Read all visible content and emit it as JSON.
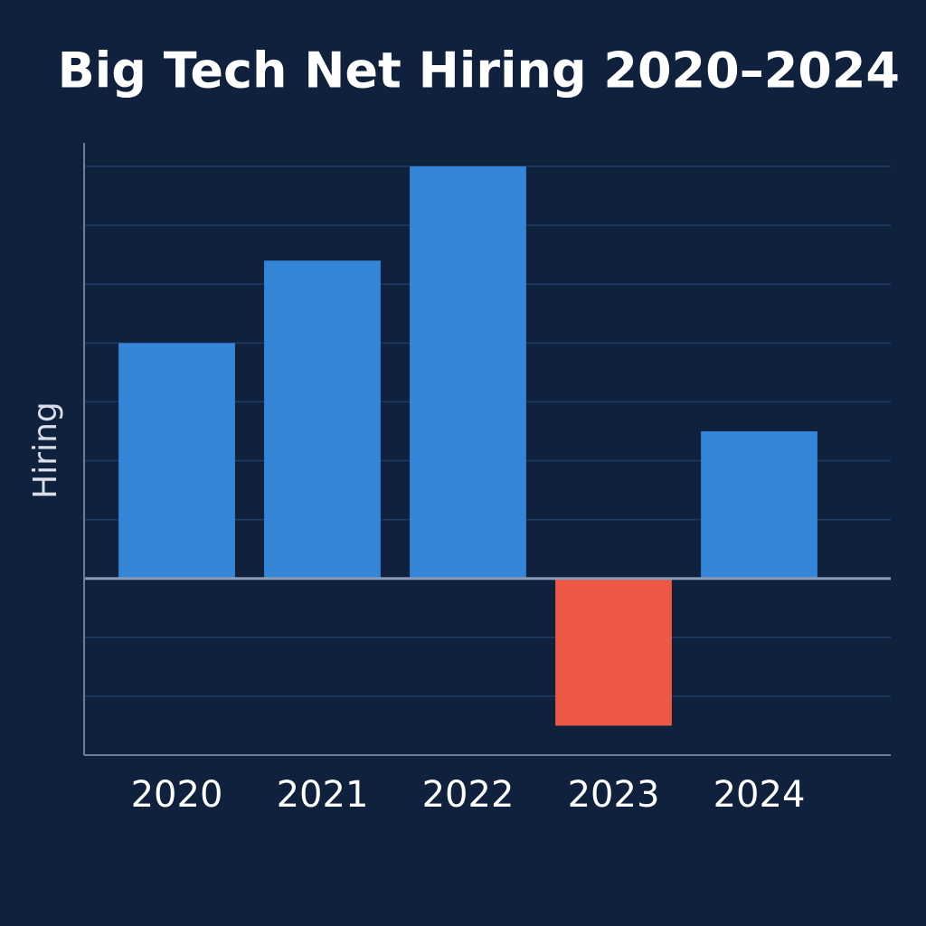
{
  "chart_data": {
    "type": "bar",
    "title": "Big Tech Net Hiring 2020–2024",
    "y_label": "Hiring",
    "categories": [
      "2020",
      "2021",
      "2022",
      "2023",
      "2024"
    ],
    "values": [
      4,
      5.4,
      7,
      -2.5,
      2.5
    ],
    "colors": [
      "#3585d8",
      "#3585d8",
      "#3585d8",
      "#ee5744",
      "#3585d8"
    ],
    "ylim": [
      -3,
      7.4
    ],
    "yticks": [
      -3,
      -2,
      -1,
      0,
      1,
      2,
      3,
      4,
      5,
      6,
      7
    ],
    "grid": true,
    "show_tick_labels": false
  }
}
